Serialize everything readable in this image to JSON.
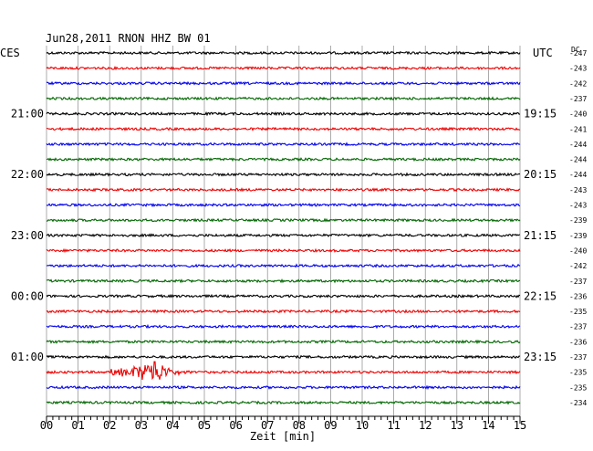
{
  "chart_data": {
    "type": "line",
    "title": "Jun28,2011   RNON HHZ BW 01",
    "left_timezone": "CES",
    "right_timezone": "UTC",
    "dc_label": "DC",
    "xlabel": "Zeit [min]",
    "x_ticks": [
      "00",
      "01",
      "02",
      "03",
      "04",
      "05",
      "06",
      "07",
      "08",
      "09",
      "10",
      "11",
      "12",
      "13",
      "14",
      "15"
    ],
    "xlim": [
      0,
      15
    ],
    "trace_colors": [
      "#000000",
      "#ee0000",
      "#0000ee",
      "#006600"
    ],
    "left_time_labels": [
      {
        "trace": 4,
        "label": "21:00"
      },
      {
        "trace": 8,
        "label": "22:00"
      },
      {
        "trace": 12,
        "label": "23:00"
      },
      {
        "trace": 16,
        "label": "00:00"
      },
      {
        "trace": 20,
        "label": "01:00"
      }
    ],
    "right_time_labels": [
      {
        "trace": 4,
        "label": "19:15"
      },
      {
        "trace": 8,
        "label": "20:15"
      },
      {
        "trace": 12,
        "label": "21:15"
      },
      {
        "trace": 16,
        "label": "22:15"
      },
      {
        "trace": 20,
        "label": "23:15"
      }
    ],
    "dc_offsets": [
      "-247",
      "-243",
      "-242",
      "-237",
      "-240",
      "-241",
      "-244",
      "-244",
      "-244",
      "-243",
      "-243",
      "-239",
      "-239",
      "-240",
      "-242",
      "-237",
      "-236",
      "-235",
      "-237",
      "-236",
      "-237",
      "-235",
      "-235",
      "-234"
    ],
    "event": {
      "trace": 21,
      "start_min": 2.0,
      "peak_min": 3.4,
      "end_min": 5.0
    }
  }
}
